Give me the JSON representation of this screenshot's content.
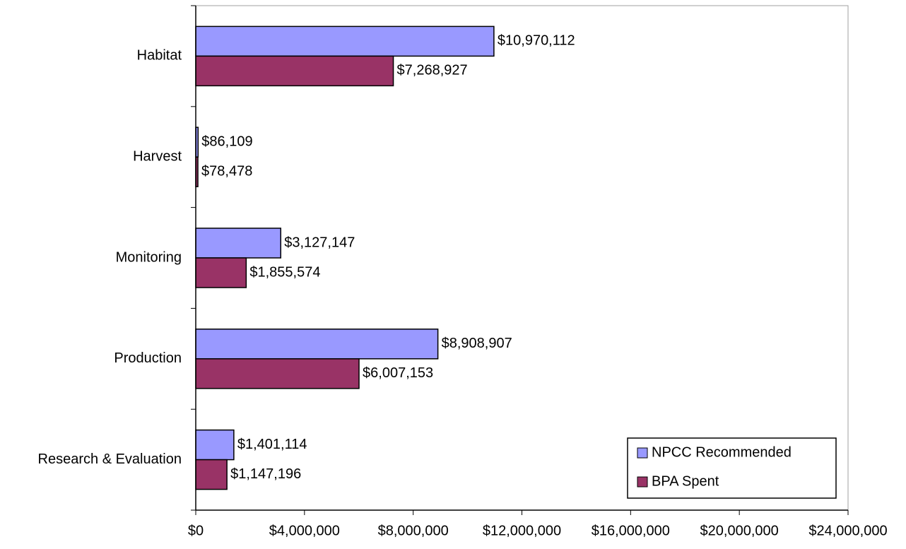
{
  "chart_data": {
    "type": "bar",
    "orientation": "horizontal",
    "categories": [
      "Habitat",
      "Harvest",
      "Monitoring",
      "Production",
      "Research & Evaluation"
    ],
    "series": [
      {
        "name": "NPCC Recommended",
        "color": "#9999ff",
        "values": [
          10970112,
          86109,
          3127147,
          8908907,
          1401114
        ],
        "value_labels": [
          "$10,970,112",
          "$86,109",
          "$3,127,147",
          "$8,908,907",
          "$1,401,114"
        ]
      },
      {
        "name": "BPA Spent",
        "color": "#993366",
        "values": [
          7268927,
          78478,
          1855574,
          6007153,
          1147196
        ],
        "value_labels": [
          "$7,268,927",
          "$78,478",
          "$1,855,574",
          "$6,007,153",
          "$1,147,196"
        ]
      }
    ],
    "xlim": [
      0,
      24000000
    ],
    "xticks": [
      {
        "value": 0,
        "label": "$0"
      },
      {
        "value": 4000000,
        "label": "$4,000,000"
      },
      {
        "value": 8000000,
        "label": "$8,000,000"
      },
      {
        "value": 12000000,
        "label": "$12,000,000"
      },
      {
        "value": 16000000,
        "label": "$16,000,000"
      },
      {
        "value": 20000000,
        "label": "$20,000,000"
      },
      {
        "value": 24000000,
        "label": "$24,000,000"
      }
    ],
    "legend": "lower right"
  }
}
